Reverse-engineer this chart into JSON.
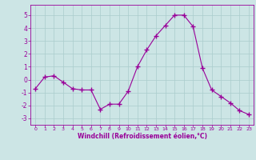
{
  "x": [
    0,
    1,
    2,
    3,
    4,
    5,
    6,
    7,
    8,
    9,
    10,
    11,
    12,
    13,
    14,
    15,
    16,
    17,
    18,
    19,
    20,
    21,
    22,
    23
  ],
  "y": [
    -0.7,
    0.2,
    0.3,
    -0.2,
    -0.7,
    -0.8,
    -0.8,
    -2.3,
    -1.9,
    -1.9,
    -0.9,
    1.0,
    2.3,
    3.4,
    4.2,
    5.0,
    5.0,
    4.1,
    0.9,
    -0.8,
    -1.3,
    -1.8,
    -2.4,
    -2.7
  ],
  "line_color": "#990099",
  "marker": "+",
  "marker_size": 4,
  "bg_color": "#cce5e5",
  "grid_color": "#aacccc",
  "xlabel": "Windchill (Refroidissement éolien,°C)",
  "xlabel_color": "#990099",
  "tick_color": "#990099",
  "ylim": [
    -3.5,
    5.8
  ],
  "yticks": [
    -3,
    -2,
    -1,
    0,
    1,
    2,
    3,
    4,
    5
  ],
  "xlim": [
    -0.5,
    23.5
  ],
  "xticks": [
    0,
    1,
    2,
    3,
    4,
    5,
    6,
    7,
    8,
    9,
    10,
    11,
    12,
    13,
    14,
    15,
    16,
    17,
    18,
    19,
    20,
    21,
    22,
    23
  ],
  "xtick_fontsize": 4.5,
  "ytick_fontsize": 5.5,
  "xlabel_fontsize": 5.5
}
